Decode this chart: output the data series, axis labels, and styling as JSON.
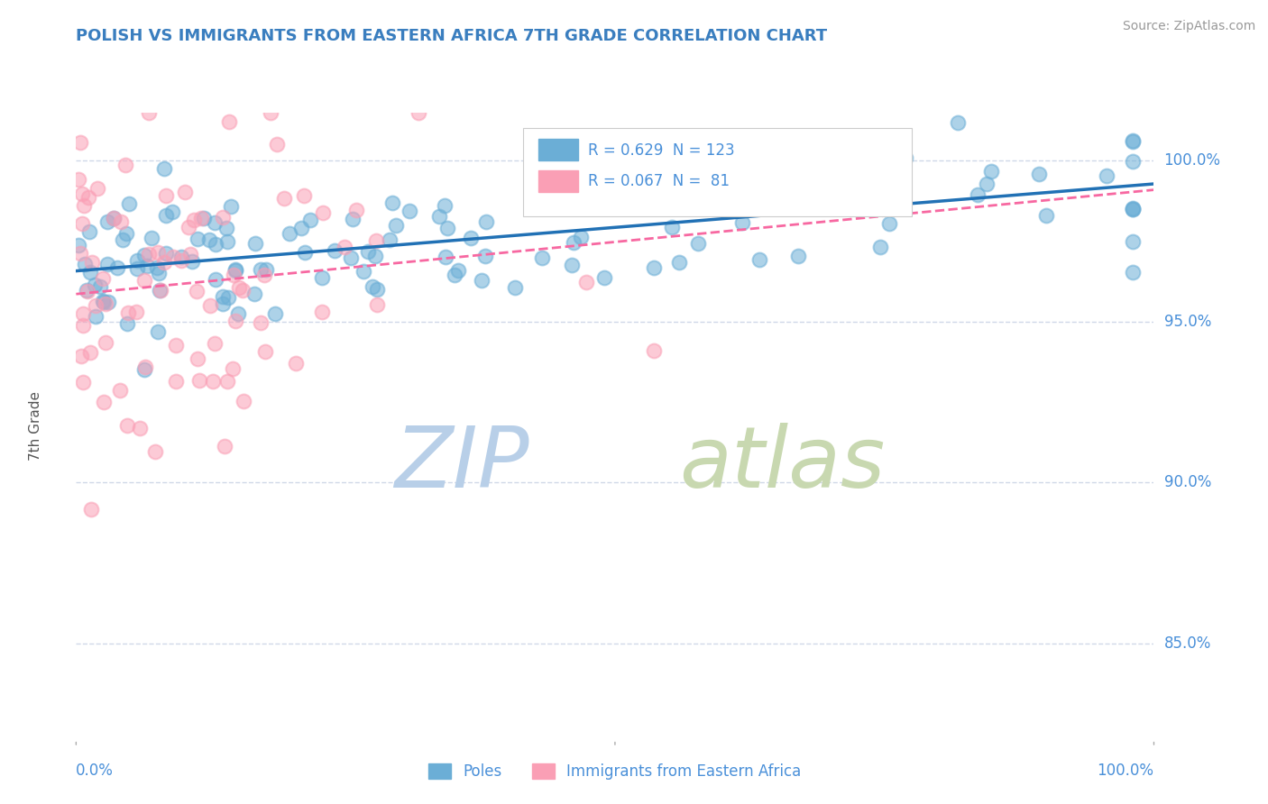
{
  "title": "POLISH VS IMMIGRANTS FROM EASTERN AFRICA 7TH GRADE CORRELATION CHART",
  "source": "Source: ZipAtlas.com",
  "ylabel": "7th Grade",
  "right_yticks": [
    85.0,
    90.0,
    95.0,
    100.0
  ],
  "xlim": [
    0.0,
    100.0
  ],
  "ylim": [
    82.0,
    101.5
  ],
  "blue_R": 0.629,
  "blue_N": 123,
  "pink_R": 0.067,
  "pink_N": 81,
  "blue_color": "#6baed6",
  "pink_color": "#fa9fb5",
  "trend_blue_color": "#2171b5",
  "trend_pink_color": "#f768a1",
  "legend_blue_label": "Poles",
  "legend_pink_label": "Immigrants from Eastern Africa",
  "watermark_zip": "ZIP",
  "watermark_atlas": "atlas",
  "watermark_color_zip": "#b8cfe8",
  "watermark_color_atlas": "#c8d8b0",
  "title_color": "#3a7ebf",
  "axis_label_color": "#4a90d9",
  "grid_color": "#d0d8e8",
  "background_color": "#ffffff"
}
